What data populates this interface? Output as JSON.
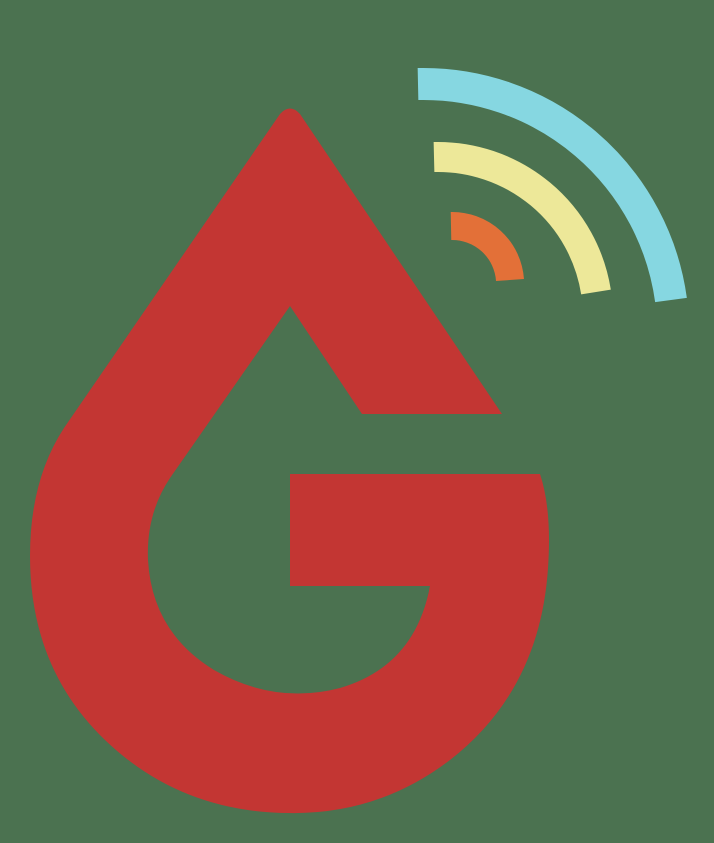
{
  "logo": {
    "description_icon": "drop-g-wireless-logo",
    "colors": {
      "background": "#4b7250",
      "drop": "#c33633",
      "wave_inner": "#e37038",
      "wave_middle": "#ede899",
      "wave_outer": "#86d7e1"
    }
  }
}
